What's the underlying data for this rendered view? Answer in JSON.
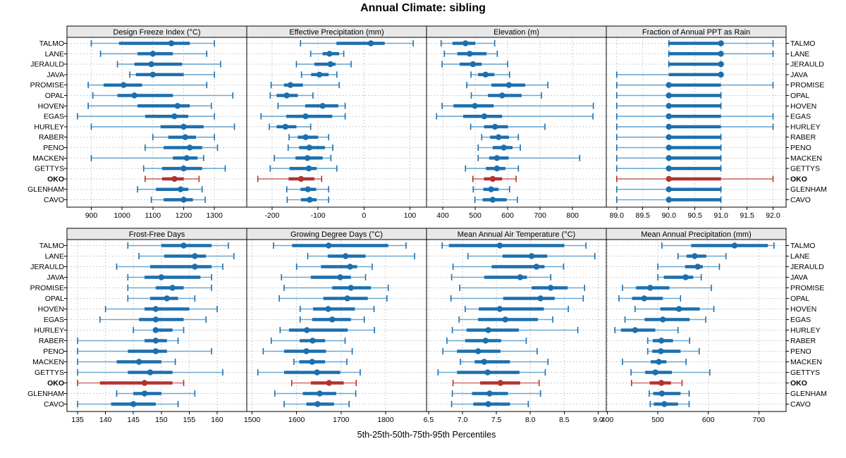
{
  "title": "Annual Climate: sibling",
  "axis_label": "5th-25th-50th-75th-95th Percentiles",
  "stations": [
    "TALMO",
    "LANE",
    "JERAULD",
    "JAVA",
    "PROMISE",
    "OPAL",
    "HOVEN",
    "EGAS",
    "HURLEY",
    "RABER",
    "PENO",
    "MACKEN",
    "GETTYS",
    "OKO",
    "GLENHAM",
    "CAVO"
  ],
  "highlight_station": "OKO",
  "colors": {
    "series_main": "#1c6fae",
    "series_whisker": "#6da7cf",
    "highlight_main": "#b23230",
    "highlight_whisker": "#cd6f6a",
    "grid": "#bdbdbd",
    "strip_bg": "#e8e8e8",
    "border": "#000000",
    "text": "#000000"
  },
  "chart_data": [
    {
      "type": "percentile-dotplot",
      "title": "Design Freeze Index (°C)",
      "tick_values": [
        900,
        1000,
        1100,
        1200,
        1300
      ],
      "tick_labels": [
        "900",
        "1000",
        "1100",
        "1200",
        "1300"
      ],
      "domain": [
        821,
        1405
      ],
      "percentiles": [
        "5th",
        "25th",
        "50th",
        "75th",
        "95th"
      ],
      "values": [
        [
          900,
          990,
          1160,
          1220,
          1300
        ],
        [
          930,
          1050,
          1100,
          1165,
          1275
        ],
        [
          985,
          1040,
          1095,
          1195,
          1320
        ],
        [
          1025,
          1045,
          1100,
          1200,
          1300
        ],
        [
          890,
          940,
          1005,
          1065,
          1275
        ],
        [
          905,
          985,
          1040,
          1165,
          1360
        ],
        [
          890,
          1050,
          1180,
          1220,
          1290
        ],
        [
          855,
          1075,
          1170,
          1215,
          1300
        ],
        [
          900,
          1125,
          1200,
          1265,
          1365
        ],
        [
          1100,
          1150,
          1205,
          1240,
          1300
        ],
        [
          1075,
          1135,
          1220,
          1260,
          1310
        ],
        [
          900,
          1165,
          1210,
          1245,
          1265
        ],
        [
          1070,
          1130,
          1200,
          1260,
          1335
        ],
        [
          1075,
          1130,
          1170,
          1200,
          1250
        ],
        [
          1050,
          1110,
          1190,
          1215,
          1260
        ],
        [
          1095,
          1135,
          1200,
          1230,
          1270
        ]
      ]
    },
    {
      "type": "percentile-dotplot",
      "title": "Effective Precipitation (mm)",
      "tick_values": [
        -200,
        -100,
        0,
        100
      ],
      "tick_labels": [
        "-200",
        "-100",
        "0",
        "100"
      ],
      "domain": [
        -255,
        136
      ],
      "percentiles": [
        "5th",
        "25th",
        "50th",
        "75th",
        "95th"
      ],
      "values": [
        [
          -138,
          -60,
          15,
          45,
          107
        ],
        [
          -116,
          -90,
          -75,
          -54,
          -44
        ],
        [
          -147,
          -108,
          -73,
          -62,
          -28
        ],
        [
          -136,
          -115,
          -97,
          -77,
          -59
        ],
        [
          -202,
          -174,
          -160,
          -133,
          -54
        ],
        [
          -204,
          -190,
          -168,
          -144,
          -111
        ],
        [
          -187,
          -128,
          -90,
          -56,
          -41
        ],
        [
          -224,
          -169,
          -127,
          -69,
          -41
        ],
        [
          -206,
          -190,
          -171,
          -147,
          -116
        ],
        [
          -163,
          -144,
          -127,
          -100,
          -77
        ],
        [
          -165,
          -141,
          -119,
          -85,
          -68
        ],
        [
          -195,
          -149,
          -123,
          -90,
          -72
        ],
        [
          -204,
          -162,
          -120,
          -103,
          -59
        ],
        [
          -231,
          -164,
          -137,
          -108,
          -92
        ],
        [
          -168,
          -138,
          -122,
          -104,
          -77
        ],
        [
          -167,
          -137,
          -118,
          -103,
          -77
        ]
      ]
    },
    {
      "type": "percentile-dotplot",
      "title": "Elevation (m)",
      "tick_values": [
        400,
        500,
        600,
        700,
        800
      ],
      "tick_labels": [
        "400",
        "500",
        "600",
        "700",
        "800"
      ],
      "domain": [
        350,
        904
      ],
      "percentiles": [
        "5th",
        "25th",
        "50th",
        "75th",
        "95th"
      ],
      "values": [
        [
          395,
          430,
          470,
          500,
          560
        ],
        [
          405,
          445,
          483,
          535,
          568
        ],
        [
          398,
          452,
          493,
          520,
          600
        ],
        [
          487,
          509,
          532,
          559,
          606
        ],
        [
          474,
          550,
          604,
          654,
          724
        ],
        [
          488,
          539,
          583,
          643,
          704
        ],
        [
          398,
          433,
          499,
          557,
          864
        ],
        [
          381,
          463,
          528,
          583,
          863
        ],
        [
          486,
          527,
          561,
          601,
          715
        ],
        [
          520,
          546,
          572,
          604,
          633
        ],
        [
          509,
          554,
          588,
          615,
          639
        ],
        [
          509,
          543,
          567,
          603,
          822
        ],
        [
          470,
          533,
          567,
          593,
          633
        ],
        [
          493,
          527,
          554,
          583,
          626
        ],
        [
          494,
          525,
          549,
          572,
          606
        ],
        [
          499,
          523,
          554,
          597,
          630
        ]
      ]
    },
    {
      "type": "percentile-dotplot",
      "title": "Fraction of Annual PPT as Rain",
      "tick_values": [
        89.0,
        89.5,
        90.0,
        90.5,
        91.0,
        91.5,
        92.0
      ],
      "tick_labels": [
        "89.0",
        "89.5",
        "90.0",
        "90.5",
        "91.0",
        "91.5",
        "92.0"
      ],
      "domain": [
        88.8,
        92.25
      ],
      "percentiles": [
        "5th",
        "25th",
        "50th",
        "75th",
        "95th"
      ],
      "values": [
        [
          90,
          90,
          91,
          91,
          92
        ],
        [
          90,
          90,
          91,
          91,
          92
        ],
        [
          90,
          90,
          91,
          91,
          91
        ],
        [
          89,
          90,
          91,
          91,
          91
        ],
        [
          89,
          90,
          90,
          91,
          92
        ],
        [
          89,
          90,
          90,
          91,
          91
        ],
        [
          89,
          90,
          90,
          91,
          91
        ],
        [
          89,
          90,
          90,
          91,
          92
        ],
        [
          89,
          90,
          90,
          91,
          92
        ],
        [
          89,
          90,
          90,
          91,
          91
        ],
        [
          89,
          90,
          90,
          91,
          91
        ],
        [
          89,
          90,
          90,
          91,
          91
        ],
        [
          89,
          90,
          90,
          91,
          91
        ],
        [
          89,
          90,
          90,
          91,
          92
        ],
        [
          89,
          90,
          90,
          91,
          91
        ],
        [
          89,
          90,
          90,
          91,
          91
        ]
      ]
    },
    {
      "type": "percentile-dotplot",
      "title": "Frost-Free Days",
      "tick_values": [
        135,
        140,
        145,
        150,
        155,
        160
      ],
      "tick_labels": [
        "135",
        "140",
        "145",
        "150",
        "155",
        "160"
      ],
      "domain": [
        133.1,
        165.3
      ],
      "percentiles": [
        "5th",
        "25th",
        "50th",
        "75th",
        "95th"
      ],
      "values": [
        [
          144,
          150,
          154,
          159,
          162
        ],
        [
          146,
          150.5,
          156,
          158,
          163
        ],
        [
          142,
          148,
          156,
          159,
          161
        ],
        [
          144,
          147,
          150,
          157,
          159
        ],
        [
          144,
          149,
          152,
          154,
          159
        ],
        [
          144,
          148,
          151,
          153,
          156
        ],
        [
          140,
          147,
          149,
          155,
          160
        ],
        [
          139,
          146,
          149,
          154,
          158
        ],
        [
          145,
          148.5,
          149,
          152,
          154
        ],
        [
          135,
          147,
          149,
          151,
          153
        ],
        [
          135,
          144,
          149,
          151,
          159
        ],
        [
          135,
          142,
          146,
          150,
          152.5
        ],
        [
          135,
          144,
          148,
          152,
          161
        ],
        [
          135,
          139,
          147,
          152,
          154
        ],
        [
          142,
          145,
          147,
          150,
          156
        ],
        [
          135,
          141,
          145,
          149,
          153
        ]
      ]
    },
    {
      "type": "percentile-dotplot",
      "title": "Growing Degree Days (°C)",
      "tick_values": [
        1500,
        1600,
        1700,
        1800
      ],
      "tick_labels": [
        "1500",
        "1600",
        "1700",
        "1800"
      ],
      "domain": [
        1488,
        1892
      ],
      "percentiles": [
        "5th",
        "25th",
        "50th",
        "75th",
        "95th"
      ],
      "values": [
        [
          1548,
          1590,
          1672,
          1806,
          1846
        ],
        [
          1625,
          1670,
          1710,
          1755,
          1865
        ],
        [
          1600,
          1655,
          1720,
          1736,
          1770
        ],
        [
          1566,
          1632,
          1698,
          1722,
          1755
        ],
        [
          1572,
          1680,
          1722,
          1767,
          1806
        ],
        [
          1561,
          1660,
          1714,
          1760,
          1803
        ],
        [
          1608,
          1637,
          1671,
          1731,
          1774
        ],
        [
          1608,
          1635,
          1680,
          1722,
          1752
        ],
        [
          1563,
          1583,
          1623,
          1715,
          1775
        ],
        [
          1543,
          1607,
          1636,
          1664,
          1709
        ],
        [
          1525,
          1572,
          1622,
          1666,
          1725
        ],
        [
          1594,
          1606,
          1635,
          1664,
          1713
        ],
        [
          1513,
          1572,
          1646,
          1698,
          1743
        ],
        [
          1589,
          1632,
          1673,
          1706,
          1734
        ],
        [
          1551,
          1614,
          1652,
          1689,
          1733
        ],
        [
          1572,
          1622,
          1647,
          1684,
          1718
        ]
      ]
    },
    {
      "type": "percentile-dotplot",
      "title": "Mean Annual Air Temperature (°C)",
      "tick_values": [
        6.5,
        7.0,
        7.5,
        8.0,
        8.5,
        9.0
      ],
      "tick_labels": [
        "6.5",
        "7.0",
        "7.5",
        "8.0",
        "8.5",
        "9.0"
      ],
      "domain": [
        6.47,
        9.12
      ],
      "percentiles": [
        "5th",
        "25th",
        "50th",
        "75th",
        "95th"
      ],
      "values": [
        [
          6.7,
          6.8,
          7.55,
          8.5,
          8.82
        ],
        [
          7.08,
          7.59,
          8.02,
          8.25,
          8.95
        ],
        [
          6.86,
          7.43,
          8.09,
          8.21,
          8.49
        ],
        [
          6.84,
          7.32,
          7.85,
          7.95,
          8.3
        ],
        [
          6.96,
          8.02,
          8.3,
          8.55,
          8.8
        ],
        [
          6.83,
          7.6,
          8.15,
          8.36,
          8.78
        ],
        [
          7.04,
          7.24,
          7.55,
          8.2,
          8.56
        ],
        [
          6.95,
          7.23,
          7.63,
          8.11,
          8.33
        ],
        [
          6.85,
          7.06,
          7.38,
          7.83,
          8.7
        ],
        [
          6.77,
          7.04,
          7.34,
          7.57,
          7.94
        ],
        [
          6.71,
          6.92,
          7.23,
          7.56,
          8.1
        ],
        [
          6.97,
          7.18,
          7.32,
          7.7,
          8.26
        ],
        [
          6.64,
          6.92,
          7.37,
          7.84,
          8.22
        ],
        [
          6.86,
          7.26,
          7.56,
          7.85,
          8.13
        ],
        [
          6.85,
          7.14,
          7.4,
          7.67,
          8.15
        ],
        [
          6.84,
          7.16,
          7.38,
          7.7,
          7.97
        ]
      ]
    },
    {
      "type": "percentile-dotplot",
      "title": "Mean Annual Precipitation (mm)",
      "tick_values": [
        400,
        500,
        600,
        700
      ],
      "tick_labels": [
        "400",
        "500",
        "600",
        "700"
      ],
      "domain": [
        398,
        754
      ],
      "percentiles": [
        "5th",
        "25th",
        "50th",
        "75th",
        "95th"
      ],
      "values": [
        [
          508,
          566,
          652,
          718,
          730
        ],
        [
          540,
          557,
          573,
          596,
          635
        ],
        [
          500,
          554,
          579,
          589,
          622
        ],
        [
          500,
          512,
          555,
          570,
          586
        ],
        [
          430,
          457,
          485,
          523,
          606
        ],
        [
          423,
          449,
          473,
          510,
          545
        ],
        [
          455,
          505,
          542,
          583,
          611
        ],
        [
          435,
          474,
          510,
          563,
          595
        ],
        [
          415,
          427,
          455,
          495,
          540
        ],
        [
          480,
          490,
          507,
          530,
          563
        ],
        [
          480,
          489,
          506,
          545,
          582
        ],
        [
          430,
          486,
          502,
          517,
          556
        ],
        [
          447,
          475,
          495,
          528,
          603
        ],
        [
          448,
          484,
          507,
          526,
          548
        ],
        [
          483,
          491,
          508,
          545,
          562
        ],
        [
          485,
          492,
          513,
          540,
          562
        ]
      ]
    }
  ]
}
